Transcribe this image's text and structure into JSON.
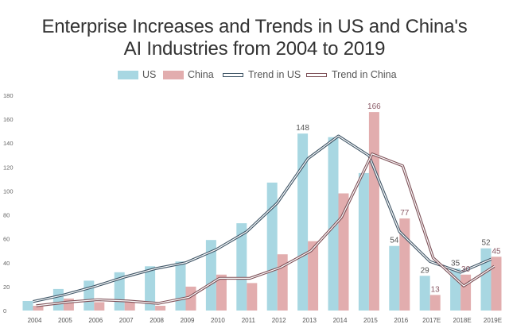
{
  "chart_data": {
    "type": "bar",
    "title": "Enterprise Increases and Trends in US and China's AI Industries from 2004 to 2019",
    "title_lines": [
      "Enterprise Increases and Trends in US and China's",
      "AI Industries from 2004 to 2019"
    ],
    "xlabel": "",
    "ylabel": "",
    "ylim": [
      0,
      180
    ],
    "yticks": [
      0,
      20,
      40,
      60,
      80,
      100,
      120,
      140,
      160,
      180
    ],
    "grid": false,
    "legend_position": "top-center",
    "categories": [
      "2004",
      "2005",
      "2006",
      "2007",
      "2008",
      "2009",
      "2010",
      "2011",
      "2012",
      "2013",
      "2014",
      "2015",
      "2016",
      "2017E",
      "2018E",
      "2019E"
    ],
    "series": [
      {
        "name": "US",
        "kind": "bar",
        "color": "#a8d7e2",
        "values": [
          8,
          18,
          25,
          32,
          37,
          41,
          59,
          73,
          107,
          148,
          145,
          115,
          54,
          29,
          35,
          52
        ],
        "labels": [
          null,
          null,
          null,
          null,
          null,
          null,
          null,
          null,
          null,
          "148",
          null,
          null,
          "54",
          "29",
          "35",
          "52"
        ]
      },
      {
        "name": "China",
        "kind": "bar",
        "color": "#e2adae",
        "values": [
          4,
          10,
          7,
          8,
          4,
          20,
          30,
          23,
          47,
          58,
          98,
          166,
          77,
          13,
          30,
          45
        ],
        "labels": [
          null,
          null,
          null,
          null,
          null,
          null,
          null,
          null,
          null,
          null,
          null,
          "166",
          "77",
          "13",
          "30",
          "45"
        ]
      },
      {
        "name": "Trend in US",
        "kind": "line",
        "color": "#3f5566",
        "values": [
          7.5,
          13,
          20,
          28,
          35,
          40,
          51,
          66,
          90,
          127,
          146,
          129.5,
          66,
          41,
          32,
          43
        ]
      },
      {
        "name": "Trend in China",
        "kind": "line",
        "color": "#7d5057",
        "values": [
          4,
          7,
          9,
          8,
          6,
          11,
          27,
          27,
          36,
          50,
          78,
          131,
          121,
          44,
          20.5,
          37
        ]
      }
    ]
  },
  "legend": {
    "us": "US",
    "china": "China",
    "trend_us": "Trend in US",
    "trend_china": "Trend in China"
  },
  "colors": {
    "us": "#a8d7e2",
    "china": "#e2adae",
    "trend_us_outline": "#3f5566",
    "trend_china_outline": "#7d5057",
    "us_label": "#555555",
    "china_label": "#8a5a66"
  }
}
